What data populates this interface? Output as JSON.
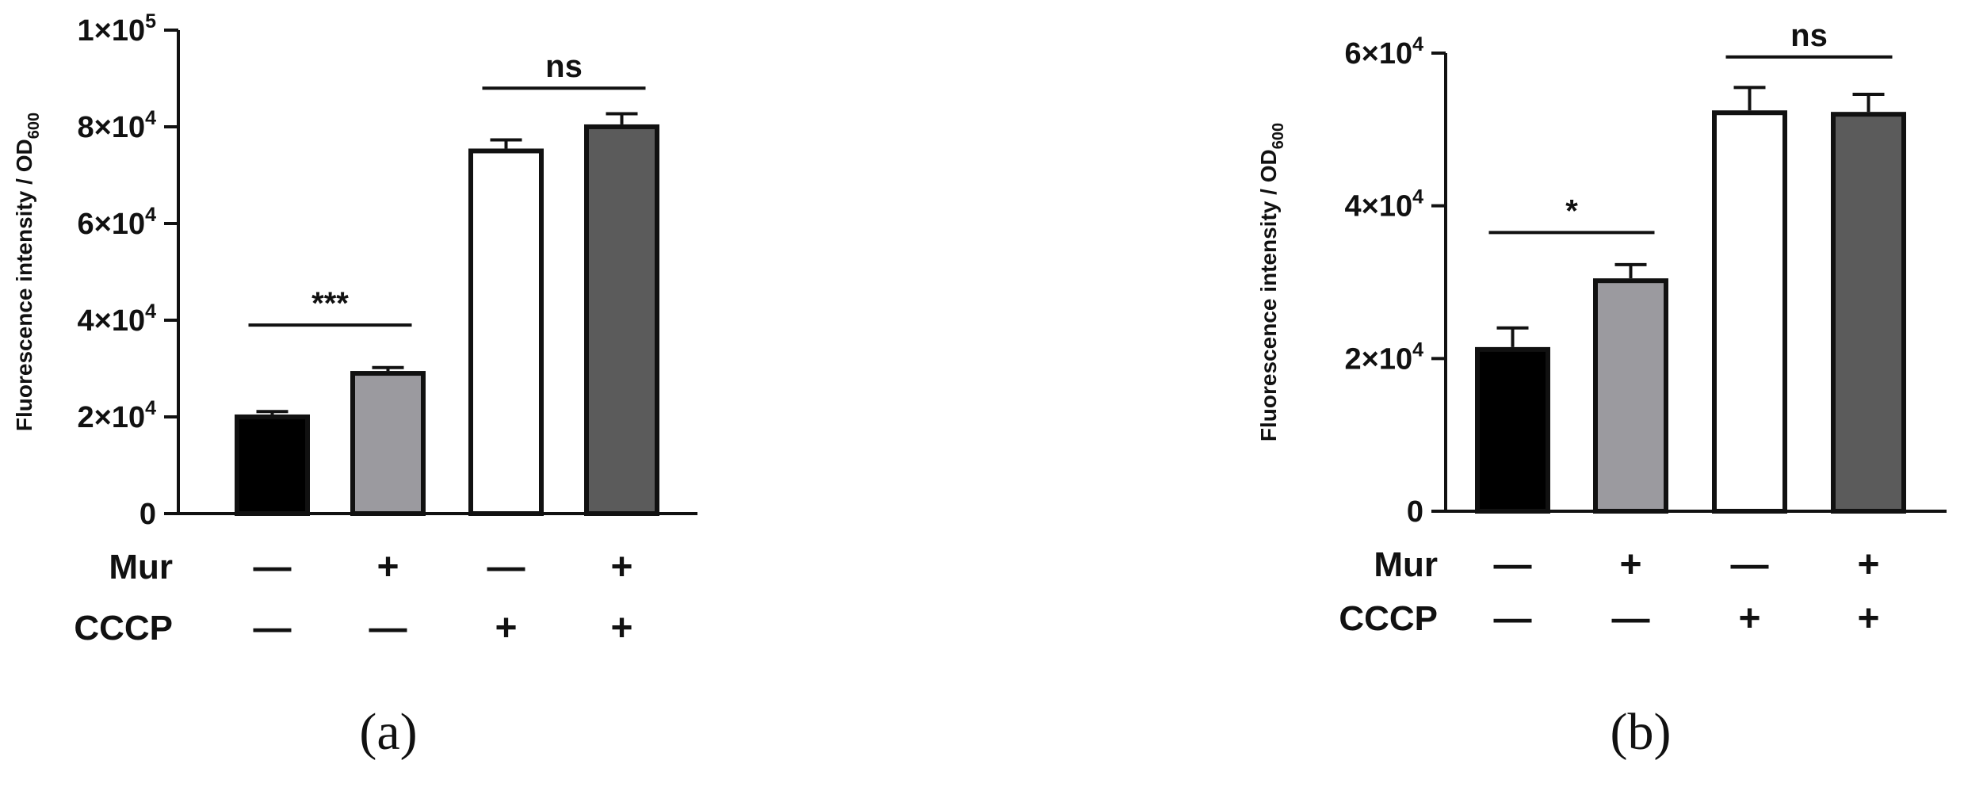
{
  "chart_data": [
    {
      "type": "bar",
      "panel_label": "(a)",
      "ylabel_main": "Fluorescence intensity / OD",
      "ylabel_sub": "600",
      "ylim": [
        0,
        100000
      ],
      "yticks": [
        {
          "value": 0,
          "mant": "0",
          "exp": ""
        },
        {
          "value": 20000,
          "mant": "2×10",
          "exp": "4"
        },
        {
          "value": 40000,
          "mant": "4×10",
          "exp": "4"
        },
        {
          "value": 60000,
          "mant": "6×10",
          "exp": "4"
        },
        {
          "value": 80000,
          "mant": "8×10",
          "exp": "4"
        },
        {
          "value": 100000,
          "mant": "1×10",
          "exp": "5"
        }
      ],
      "bars": [
        {
          "value": 20500,
          "error": 600,
          "fill": "#000000"
        },
        {
          "value": 29500,
          "error": 700,
          "fill": "#9b9a9f"
        },
        {
          "value": 75500,
          "error": 1800,
          "fill": "#ffffff"
        },
        {
          "value": 80500,
          "error": 2200,
          "fill": "#5b5b5b"
        }
      ],
      "rows": [
        {
          "label": "Mur",
          "signs": [
            "—",
            "+",
            "—",
            "+"
          ]
        },
        {
          "label": "CCCP",
          "signs": [
            "—",
            "—",
            "+",
            "+"
          ]
        }
      ],
      "significance": [
        {
          "from": 0,
          "to": 1,
          "y": 39000,
          "label": "***"
        },
        {
          "from": 2,
          "to": 3,
          "y": 88000,
          "label": "ns"
        }
      ],
      "grid": false
    },
    {
      "type": "bar",
      "panel_label": "(b)",
      "ylabel_main": "Fluorescence intensity / OD",
      "ylabel_sub": "600",
      "ylim": [
        0,
        60000
      ],
      "yticks": [
        {
          "value": 0,
          "mant": "0",
          "exp": ""
        },
        {
          "value": 20000,
          "mant": "2×10",
          "exp": "4"
        },
        {
          "value": 40000,
          "mant": "4×10",
          "exp": "4"
        },
        {
          "value": 60000,
          "mant": "6×10",
          "exp": "4"
        }
      ],
      "bars": [
        {
          "value": 21500,
          "error": 2500,
          "fill": "#000000"
        },
        {
          "value": 30500,
          "error": 1800,
          "fill": "#9b9a9f"
        },
        {
          "value": 52500,
          "error": 3000,
          "fill": "#ffffff"
        },
        {
          "value": 52300,
          "error": 2300,
          "fill": "#5b5b5b"
        }
      ],
      "rows": [
        {
          "label": "Mur",
          "signs": [
            "—",
            "+",
            "—",
            "+"
          ]
        },
        {
          "label": "CCCP",
          "signs": [
            "—",
            "—",
            "+",
            "+"
          ]
        }
      ],
      "significance": [
        {
          "from": 0,
          "to": 1,
          "y": 36500,
          "label": "*"
        },
        {
          "from": 2,
          "to": 3,
          "y": 59500,
          "label": "ns"
        }
      ],
      "grid": false
    }
  ]
}
